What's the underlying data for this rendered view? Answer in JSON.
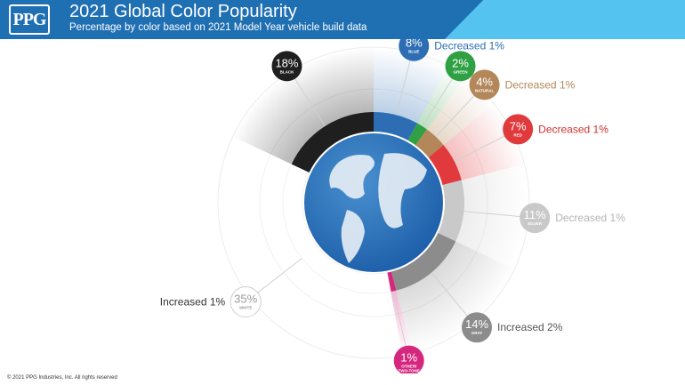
{
  "header": {
    "logo_text": "PPG",
    "title": "2021 Global Color Popularity",
    "subtitle": "Percentage by color based on 2021 Model Year vehicle build data",
    "background": "#1f6fb3",
    "accent": "#54c3ef"
  },
  "chart_data": {
    "type": "pie",
    "title": "2021 Global Color Popularity",
    "subtitle": "Percentage by color based on 2021 Model Year vehicle build data",
    "center_graphic": "globe",
    "slices": [
      {
        "label": "BLUE",
        "value": 8,
        "display": "8%",
        "color": "#2d6db3",
        "change": "Decreased 1%",
        "change_color": "#2d6db3"
      },
      {
        "label": "GREEN",
        "value": 2,
        "display": "2%",
        "color": "#2fa043",
        "change": "",
        "change_color": ""
      },
      {
        "label": "NATURAL",
        "value": 4,
        "display": "4%",
        "color": "#b3875a",
        "change": "Decreased 1%",
        "change_color": "#b3875a"
      },
      {
        "label": "RED",
        "value": 7,
        "display": "7%",
        "color": "#e03a3c",
        "change": "Decreased 1%",
        "change_color": "#d32f2f"
      },
      {
        "label": "SILVER",
        "value": 11,
        "display": "11%",
        "color": "#c9c9c9",
        "change": "Decreased 1%",
        "change_color": "#b5b5b5"
      },
      {
        "label": "GRAY",
        "value": 14,
        "display": "14%",
        "color": "#8c8c8c",
        "change": "Increased 2%",
        "change_color": "#555555"
      },
      {
        "label": "OTHER/ TWO-TONE",
        "value": 1,
        "display": "1%",
        "color": "#d6277e",
        "change": "",
        "change_color": ""
      },
      {
        "label": "WHITE",
        "value": 35,
        "display": "35%",
        "color": "#ffffff",
        "change": "Increased 1%",
        "change_color": "#333333"
      },
      {
        "label": "BLACK",
        "value": 18,
        "display": "18%",
        "color": "#1f1f1f",
        "change": "",
        "change_color": ""
      }
    ]
  },
  "footer": {
    "copyright": "© 2021 PPG Industries, Inc. All rights reserved"
  }
}
